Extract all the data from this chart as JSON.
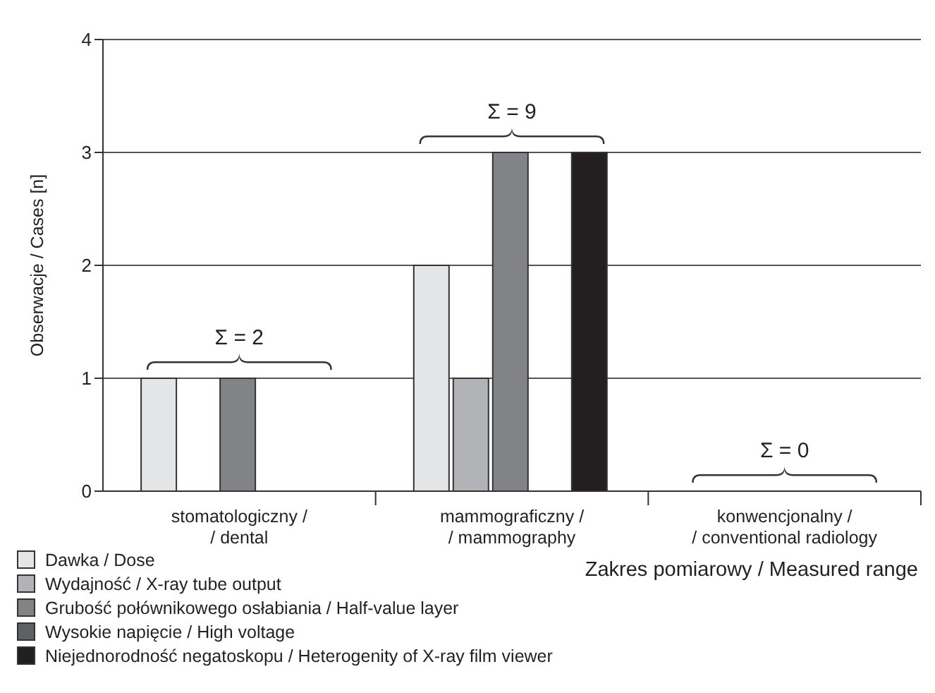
{
  "chart_data": {
    "type": "bar",
    "ylabel": "Obserwacje / Cases [n]",
    "xlabel": "Zakres pomiarowy / Measured range",
    "categories": [
      "stomatologiczny /\n/ dental",
      "mammograficzny /\n/ mammography",
      "konwencjonalny /\n/ conventional radiology"
    ],
    "series": [
      {
        "name": "Dawka / Dose",
        "color": "#e4e5e7",
        "values": [
          1,
          2,
          0
        ]
      },
      {
        "name": "Wydajność / X-ray tube output",
        "color": "#b2b3b6",
        "values": [
          0,
          1,
          0
        ]
      },
      {
        "name": "Grubość połównikowego osłabiania / Half-value layer",
        "color": "#828386",
        "values": [
          1,
          3,
          0
        ]
      },
      {
        "name": "Wysokie napięcie / High voltage",
        "color": "#5f6062",
        "values": [
          0,
          0,
          0
        ]
      },
      {
        "name": "Niejednorodność negatoskopu / Heterogenity of X-ray film viewer",
        "color": "#231f20",
        "values": [
          0,
          3,
          0
        ]
      }
    ],
    "annotations": [
      "Σ = 2",
      "Σ = 9",
      "Σ = 0"
    ],
    "ylim": [
      0,
      4
    ],
    "yticks": [
      0,
      1,
      2,
      3,
      4
    ],
    "grid": "y",
    "legend": "bottom"
  }
}
